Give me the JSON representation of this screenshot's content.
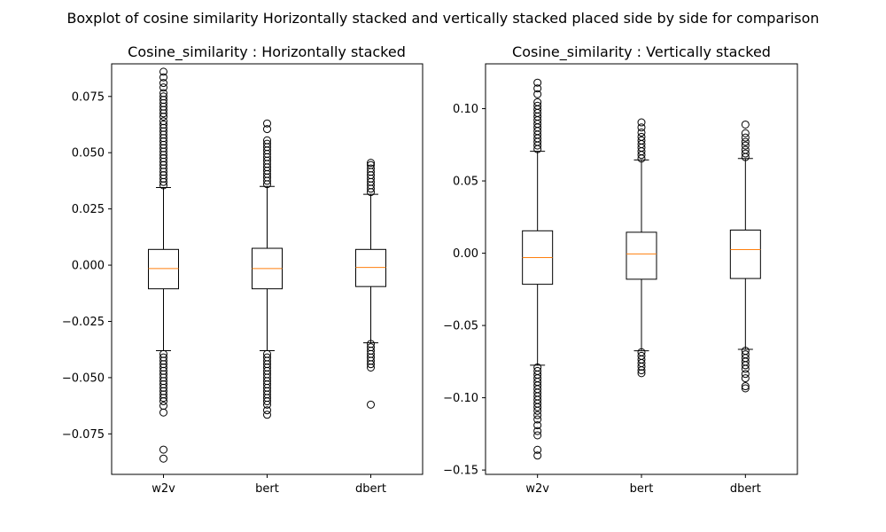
{
  "figure": {
    "suptitle": "Boxplot of cosine similarity Horizontally stacked and vertically stacked placed side by side for comparison"
  },
  "colors": {
    "box": "#000000",
    "median": "#ff7f0e",
    "flier": "#000000",
    "background": "#ffffff"
  },
  "chart_data": [
    {
      "type": "box",
      "title": "Cosine_similarity : Horizontally stacked",
      "xlabel": "",
      "ylabel": "",
      "categories": [
        "w2v",
        "bert",
        "dbert"
      ],
      "ylim": [
        -0.093,
        0.0895
      ],
      "yticks": [
        -0.075,
        -0.05,
        -0.025,
        0.0,
        0.025,
        0.05,
        0.075
      ],
      "ytick_labels": [
        "−0.075",
        "−0.050",
        "−0.025",
        "0.000",
        "0.025",
        "0.050",
        "0.075"
      ],
      "grid": false,
      "boxes": [
        {
          "name": "w2v",
          "whisker_low": -0.038,
          "q1": -0.0105,
          "median": -0.0015,
          "q3": 0.007,
          "whisker_high": 0.0345,
          "fliers_high": [
            0.0355,
            0.037,
            0.0385,
            0.04,
            0.0415,
            0.043,
            0.0445,
            0.046,
            0.0475,
            0.049,
            0.0505,
            0.052,
            0.0535,
            0.055,
            0.0565,
            0.058,
            0.0595,
            0.061,
            0.0625,
            0.064,
            0.066,
            0.0675,
            0.069,
            0.0705,
            0.072,
            0.0735,
            0.075,
            0.0765,
            0.079,
            0.081,
            0.0835,
            0.086
          ],
          "fliers_low": [
            -0.0395,
            -0.041,
            -0.0425,
            -0.044,
            -0.0455,
            -0.047,
            -0.0485,
            -0.05,
            -0.0515,
            -0.053,
            -0.0545,
            -0.056,
            -0.0575,
            -0.059,
            -0.0605,
            -0.0625,
            -0.0655,
            -0.082,
            -0.086
          ]
        },
        {
          "name": "bert",
          "whisker_low": -0.038,
          "q1": -0.0105,
          "median": -0.0015,
          "q3": 0.0075,
          "whisker_high": 0.035,
          "fliers_high": [
            0.036,
            0.0375,
            0.039,
            0.0405,
            0.042,
            0.0435,
            0.045,
            0.0465,
            0.048,
            0.0495,
            0.051,
            0.0525,
            0.054,
            0.0555,
            0.0605,
            0.063
          ],
          "fliers_low": [
            -0.0395,
            -0.041,
            -0.0425,
            -0.044,
            -0.0455,
            -0.047,
            -0.0485,
            -0.05,
            -0.0515,
            -0.053,
            -0.0545,
            -0.056,
            -0.0575,
            -0.059,
            -0.0605,
            -0.062,
            -0.0645,
            -0.0665
          ]
        },
        {
          "name": "dbert",
          "whisker_low": -0.0345,
          "q1": -0.0095,
          "median": -0.001,
          "q3": 0.007,
          "whisker_high": 0.0315,
          "fliers_high": [
            0.0325,
            0.034,
            0.0355,
            0.037,
            0.0385,
            0.04,
            0.0415,
            0.043,
            0.0445,
            0.0455
          ],
          "fliers_low": [
            -0.035,
            -0.0365,
            -0.038,
            -0.0395,
            -0.041,
            -0.0425,
            -0.044,
            -0.0455,
            -0.062
          ]
        }
      ]
    },
    {
      "type": "box",
      "title": "Cosine_similarity : Vertically stacked",
      "xlabel": "",
      "ylabel": "",
      "categories": [
        "w2v",
        "bert",
        "dbert"
      ],
      "ylim": [
        -0.153,
        0.131
      ],
      "yticks": [
        -0.15,
        -0.1,
        -0.05,
        0.0,
        0.05,
        0.1
      ],
      "ytick_labels": [
        "−0.15",
        "−0.10",
        "−0.05",
        "0.00",
        "0.05",
        "0.10"
      ],
      "grid": false,
      "boxes": [
        {
          "name": "w2v",
          "whisker_low": -0.0775,
          "q1": -0.0215,
          "median": -0.003,
          "q3": 0.0155,
          "whisker_high": 0.0705,
          "fliers_high": [
            0.072,
            0.0745,
            0.077,
            0.0795,
            0.082,
            0.0845,
            0.087,
            0.0895,
            0.092,
            0.0945,
            0.097,
            0.0995,
            0.102,
            0.1045,
            0.11,
            0.114,
            0.118
          ],
          "fliers_low": [
            -0.079,
            -0.0815,
            -0.084,
            -0.0865,
            -0.089,
            -0.0915,
            -0.094,
            -0.0965,
            -0.099,
            -0.1015,
            -0.104,
            -0.1065,
            -0.109,
            -0.112,
            -0.115,
            -0.119,
            -0.123,
            -0.126,
            -0.136,
            -0.14
          ]
        },
        {
          "name": "bert",
          "whisker_low": -0.0675,
          "q1": -0.018,
          "median": -0.0005,
          "q3": 0.0145,
          "whisker_high": 0.0645,
          "fliers_high": [
            0.0655,
            0.068,
            0.0705,
            0.073,
            0.0755,
            0.078,
            0.0805,
            0.0835,
            0.087,
            0.0905
          ],
          "fliers_low": [
            -0.0685,
            -0.071,
            -0.0735,
            -0.076,
            -0.0785,
            -0.081,
            -0.083
          ]
        },
        {
          "name": "dbert",
          "whisker_low": -0.0665,
          "q1": -0.0175,
          "median": 0.0025,
          "q3": 0.016,
          "whisker_high": 0.0655,
          "fliers_high": [
            0.0665,
            0.069,
            0.0715,
            0.0745,
            0.077,
            0.08,
            0.083,
            0.089
          ],
          "fliers_low": [
            -0.0675,
            -0.07,
            -0.0725,
            -0.075,
            -0.0775,
            -0.08,
            -0.0835,
            -0.0865,
            -0.092,
            -0.0935
          ]
        }
      ]
    }
  ]
}
